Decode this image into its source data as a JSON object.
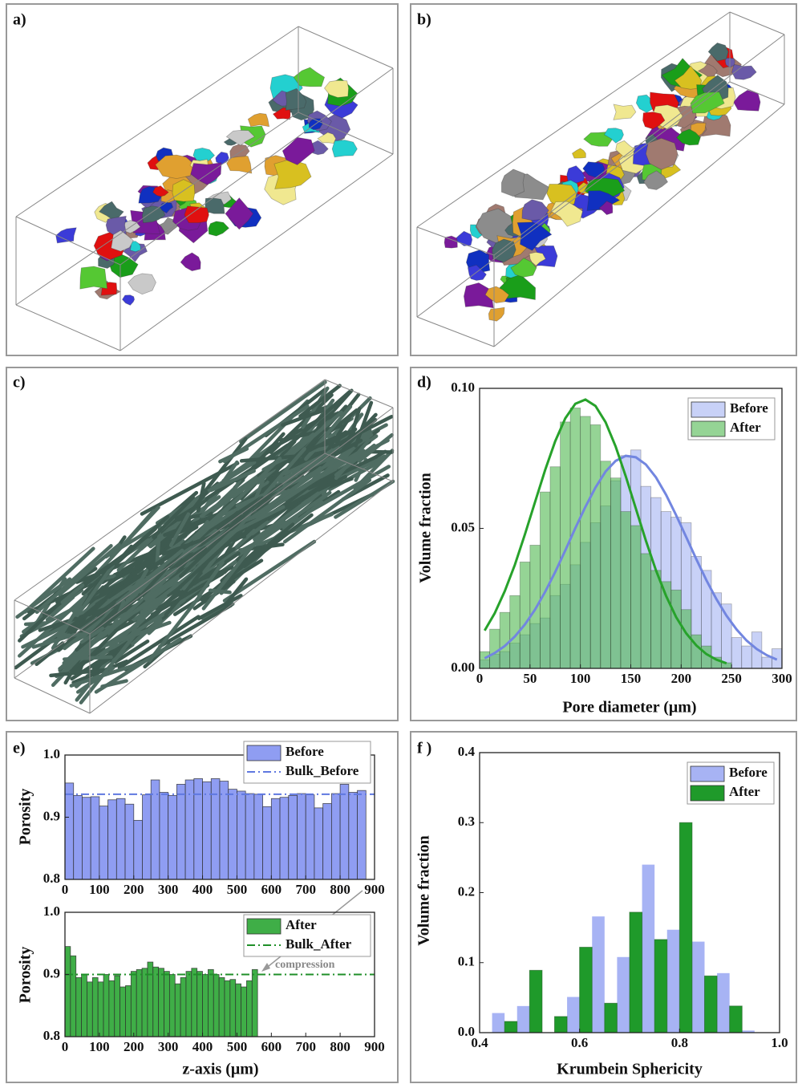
{
  "panel_labels": [
    "a)",
    "b)",
    "c)",
    "d)",
    "e)",
    "f )"
  ],
  "chart_data": [
    {
      "type": "histogram",
      "xlabel": "Pore diameter (μm)",
      "ylabel": "Volume fraction",
      "bins": [
        0,
        10,
        20,
        30,
        40,
        50,
        60,
        70,
        80,
        90,
        100,
        110,
        120,
        130,
        140,
        150,
        160,
        170,
        180,
        190,
        200,
        210,
        220,
        230,
        240,
        250,
        260,
        270,
        280,
        290,
        300
      ],
      "series": [
        {
          "name": "Before",
          "color": "#a3b2f2",
          "values": [
            0.003,
            0.005,
            0.006,
            0.009,
            0.012,
            0.016,
            0.018,
            0.026,
            0.03,
            0.037,
            0.045,
            0.052,
            0.058,
            0.067,
            0.076,
            0.078,
            0.065,
            0.061,
            0.056,
            0.054,
            0.052,
            0.04,
            0.035,
            0.027,
            0.023,
            0.011,
            0.008,
            0.013,
            0.004,
            0.007
          ]
        },
        {
          "name": "After",
          "color": "#4fb84f",
          "values": [
            0.006,
            0.014,
            0.02,
            0.026,
            0.038,
            0.044,
            0.063,
            0.072,
            0.088,
            0.093,
            0.09,
            0.087,
            0.074,
            0.068,
            0.056,
            0.051,
            0.041,
            0.035,
            0.031,
            0.028,
            0.021,
            0.012,
            0.008,
            0.004,
            0.002,
            0,
            0,
            0,
            0,
            0
          ]
        }
      ],
      "fits": [
        {
          "color": "#7286e0",
          "x": [
            5,
            15,
            25,
            35,
            45,
            55,
            65,
            75,
            85,
            95,
            105,
            115,
            125,
            135,
            145,
            155,
            165,
            175,
            185,
            195,
            205,
            215,
            225,
            235,
            245,
            255,
            265,
            275,
            285,
            295
          ],
          "values": [
            0.0036,
            0.0055,
            0.008,
            0.0114,
            0.0157,
            0.021,
            0.0273,
            0.0344,
            0.0421,
            0.0501,
            0.0577,
            0.0646,
            0.0703,
            0.0741,
            0.0759,
            0.0754,
            0.0728,
            0.0682,
            0.062,
            0.0547,
            0.0469,
            0.039,
            0.0315,
            0.0247,
            0.0188,
            0.0139,
            0.0099,
            0.0069,
            0.0047,
            0.0031
          ]
        },
        {
          "color": "#27a22b",
          "x": [
            5,
            15,
            25,
            35,
            45,
            55,
            65,
            75,
            85,
            95,
            105,
            115,
            125,
            135,
            145,
            155,
            165,
            175,
            185,
            195,
            205,
            215,
            225,
            235,
            245
          ],
          "values": [
            0.0135,
            0.0197,
            0.0276,
            0.037,
            0.0479,
            0.0594,
            0.0708,
            0.0811,
            0.0893,
            0.0945,
            0.096,
            0.0937,
            0.0879,
            0.0792,
            0.0686,
            0.0571,
            0.0456,
            0.035,
            0.0259,
            0.0183,
            0.0125,
            0.0082,
            0.0051,
            0.0031,
            0.0018
          ]
        }
      ],
      "xlim": [
        0,
        300
      ],
      "xticks": [
        0,
        50,
        100,
        150,
        200,
        250,
        300
      ],
      "ylim": [
        0,
        0.1
      ],
      "yticks": [
        {
          "value": 0,
          "label": "0.00"
        },
        {
          "value": 0.05,
          "label": "0.05"
        },
        {
          "value": 0.1,
          "label": "0.10"
        }
      ],
      "legend": "upper right"
    },
    {
      "type": "histogram",
      "ylabel": "Porosity",
      "bins": [
        0,
        25,
        50,
        75,
        100,
        125,
        150,
        175,
        200,
        225,
        250,
        275,
        300,
        325,
        350,
        375,
        400,
        425,
        450,
        475,
        500,
        525,
        550,
        575,
        600,
        625,
        650,
        675,
        700,
        725,
        750,
        775,
        800,
        825,
        850,
        875
      ],
      "series": [
        {
          "name": "Before",
          "color": "#8f9df2",
          "values": [
            0.955,
            0.935,
            0.932,
            0.933,
            0.918,
            0.928,
            0.93,
            0.921,
            0.895,
            0.936,
            0.96,
            0.94,
            0.935,
            0.953,
            0.96,
            0.962,
            0.957,
            0.962,
            0.958,
            0.945,
            0.942,
            0.938,
            0.937,
            0.917,
            0.93,
            0.932,
            0.935,
            0.938,
            0.936,
            0.915,
            0.922,
            0.938,
            0.953,
            0.94,
            0.943
          ]
        }
      ],
      "reference_lines": [
        {
          "name": "Bulk_Before",
          "value": 0.937,
          "color": "#5f78e0"
        }
      ],
      "xlim": [
        0,
        900
      ],
      "xticks": [
        0,
        100,
        200,
        300,
        400,
        500,
        600,
        700,
        800,
        900
      ],
      "ylim": [
        0.8,
        1
      ],
      "yticks": [
        0.8,
        0.9,
        {
          "value": 1,
          "label": "1.0"
        }
      ],
      "legend": "upper right"
    },
    {
      "type": "histogram",
      "ylabel": "Porosity",
      "xlabel": "z-axis (μm)",
      "annotation": "compression",
      "bins": [
        0,
        16,
        32,
        48,
        64,
        80,
        96,
        112,
        128,
        144,
        160,
        176,
        192,
        208,
        224,
        240,
        256,
        272,
        288,
        304,
        320,
        336,
        352,
        368,
        384,
        400,
        416,
        432,
        448,
        464,
        480,
        496,
        512,
        528,
        544,
        560
      ],
      "series": [
        {
          "name": "After",
          "color": "#3fae47",
          "values": [
            0.945,
            0.93,
            0.895,
            0.9,
            0.888,
            0.895,
            0.888,
            0.9,
            0.89,
            0.898,
            0.88,
            0.882,
            0.905,
            0.908,
            0.91,
            0.92,
            0.912,
            0.91,
            0.905,
            0.9,
            0.885,
            0.895,
            0.905,
            0.91,
            0.905,
            0.9,
            0.908,
            0.9,
            0.895,
            0.89,
            0.892,
            0.885,
            0.88,
            0.89,
            0.908
          ]
        }
      ],
      "reference_lines": [
        {
          "name": "Bulk_After",
          "value": 0.9,
          "color": "#1f8f28"
        }
      ],
      "xlim": [
        0,
        900
      ],
      "xticks": [
        0,
        100,
        200,
        300,
        400,
        500,
        600,
        700,
        800,
        900
      ],
      "ylim": [
        0.8,
        1
      ],
      "yticks": [
        0.8,
        0.9,
        {
          "value": 1,
          "label": "1.0"
        }
      ],
      "legend": "upper right"
    },
    {
      "type": "bar",
      "xlabel": "Krumbein Sphericity",
      "ylabel": "Volume fraction",
      "x": [
        0.45,
        0.5,
        0.55,
        0.6,
        0.65,
        0.7,
        0.75,
        0.8,
        0.85,
        0.9,
        0.95
      ],
      "series": [
        {
          "name": "Before",
          "color": "#a7b3f4",
          "values": [
            0.028,
            0.038,
            0,
            0.051,
            0.166,
            0.108,
            0.24,
            0.147,
            0.13,
            0.085,
            0.003
          ]
        },
        {
          "name": "After",
          "color": "#1f9a2a",
          "values": [
            0.016,
            0.089,
            0.023,
            0.122,
            0.042,
            0.172,
            0.133,
            0.3,
            0.081,
            0.038,
            0
          ]
        }
      ],
      "xlim": [
        0.4,
        1
      ],
      "xticks": [
        0.4,
        0.6,
        0.8,
        {
          "value": 1,
          "label": "1.0"
        }
      ],
      "ylim": [
        0,
        0.4
      ],
      "yticks": [
        {
          "value": 0,
          "label": "0.0"
        },
        0.1,
        0.2,
        0.3,
        0.4
      ],
      "legend": "upper right"
    }
  ]
}
